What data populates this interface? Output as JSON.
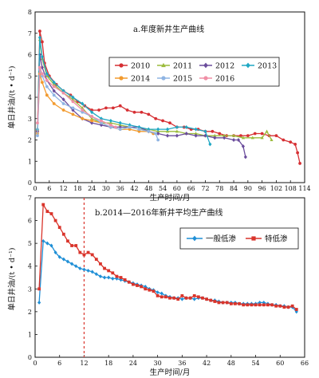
{
  "chart_data": [
    {
      "type": "line",
      "title": "a.年度新井生产曲线",
      "xlabel": "生产时间/月",
      "ylabel": "单日井油/(t • d⁻¹)",
      "xlim": [
        0,
        114
      ],
      "ylim": [
        0,
        8
      ],
      "xticks": [
        0,
        6,
        12,
        18,
        24,
        30,
        36,
        42,
        48,
        54,
        60,
        66,
        72,
        78,
        84,
        90,
        96,
        102,
        108,
        114
      ],
      "yticks": [
        0,
        1,
        2,
        3,
        4,
        5,
        6,
        7,
        8
      ],
      "legend": "top-right",
      "series": [
        {
          "name": "2010",
          "color": "#d62f33",
          "marker": "circle",
          "x": [
            1,
            2,
            3,
            4,
            6,
            9,
            12,
            15,
            18,
            21,
            24,
            27,
            30,
            33,
            36,
            39,
            42,
            45,
            48,
            51,
            54,
            57,
            60,
            63,
            66,
            69,
            72,
            75,
            78,
            81,
            84,
            87,
            90,
            93,
            96,
            99,
            102,
            105,
            108,
            110,
            111,
            112
          ],
          "y": [
            2.4,
            7.1,
            6.6,
            5.6,
            5.0,
            4.6,
            4.3,
            4.1,
            3.8,
            3.6,
            3.4,
            3.4,
            3.5,
            3.5,
            3.6,
            3.4,
            3.3,
            3.3,
            3.2,
            3.0,
            2.9,
            2.8,
            2.6,
            2.6,
            2.5,
            2.5,
            2.4,
            2.4,
            2.3,
            2.2,
            2.2,
            2.2,
            2.2,
            2.3,
            2.3,
            2.2,
            2.2,
            2.0,
            1.9,
            1.8,
            1.4,
            0.9
          ]
        },
        {
          "name": "2011",
          "color": "#9bbb3b",
          "marker": "triangle",
          "x": [
            1,
            2,
            3,
            5,
            8,
            12,
            16,
            20,
            24,
            28,
            32,
            36,
            40,
            44,
            48,
            52,
            56,
            60,
            64,
            68,
            72,
            76,
            80,
            84,
            88,
            92,
            96,
            98,
            100
          ],
          "y": [
            2.5,
            6.7,
            5.8,
            5.0,
            4.6,
            4.2,
            3.9,
            3.5,
            3.0,
            2.8,
            2.8,
            2.7,
            2.6,
            2.5,
            2.5,
            2.4,
            2.4,
            2.4,
            2.3,
            2.3,
            2.2,
            2.2,
            2.2,
            2.2,
            2.1,
            2.1,
            2.1,
            2.4,
            2.0
          ]
        },
        {
          "name": "2012",
          "color": "#6a4c9c",
          "marker": "diamond",
          "x": [
            1,
            2,
            3,
            5,
            8,
            12,
            16,
            20,
            24,
            28,
            32,
            36,
            40,
            44,
            48,
            52,
            56,
            60,
            64,
            68,
            72,
            76,
            80,
            84,
            86,
            88,
            89
          ],
          "y": [
            2.4,
            6.0,
            5.4,
            4.8,
            4.3,
            3.9,
            3.4,
            3.0,
            2.8,
            2.7,
            2.6,
            2.6,
            2.6,
            2.6,
            2.4,
            2.3,
            2.2,
            2.2,
            2.3,
            2.2,
            2.2,
            2.1,
            2.1,
            2.0,
            2.0,
            1.7,
            1.2
          ]
        },
        {
          "name": "2013",
          "color": "#1fa8c4",
          "marker": "diamond",
          "x": [
            1,
            2,
            3,
            5,
            8,
            12,
            16,
            20,
            24,
            28,
            32,
            36,
            40,
            44,
            48,
            52,
            56,
            60,
            64,
            68,
            72,
            74
          ],
          "y": [
            2.5,
            6.8,
            5.9,
            5.1,
            4.7,
            4.3,
            4.0,
            3.7,
            3.3,
            3.0,
            2.9,
            2.8,
            2.7,
            2.6,
            2.5,
            2.5,
            2.5,
            2.6,
            2.6,
            2.5,
            2.4,
            1.8
          ]
        },
        {
          "name": "2014",
          "color": "#f29a2e",
          "marker": "circle",
          "x": [
            1,
            2,
            3,
            5,
            8,
            12,
            16,
            20,
            24,
            28,
            32,
            36,
            40,
            44,
            48,
            50
          ],
          "y": [
            2.3,
            5.1,
            4.7,
            4.1,
            3.7,
            3.4,
            3.2,
            3.0,
            2.9,
            2.8,
            2.6,
            2.5,
            2.5,
            2.4,
            2.4,
            2.3
          ]
        },
        {
          "name": "2015",
          "color": "#8fb4e3",
          "marker": "circle",
          "x": [
            1,
            2,
            3,
            5,
            8,
            12,
            16,
            20,
            24,
            28,
            32,
            36,
            40,
            44,
            48,
            51,
            52
          ],
          "y": [
            2.2,
            5.3,
            5.0,
            4.5,
            4.1,
            3.7,
            3.5,
            3.3,
            3.1,
            2.8,
            2.6,
            2.5,
            2.6,
            2.5,
            2.4,
            2.3,
            2.0
          ]
        },
        {
          "name": "2016",
          "color": "#f08fa6",
          "marker": "circle",
          "x": [
            1,
            2,
            3,
            5,
            8,
            12,
            16,
            20,
            24,
            28,
            32,
            34
          ],
          "y": [
            2.8,
            5.4,
            5.1,
            4.8,
            4.5,
            4.2,
            3.8,
            3.4,
            3.1,
            2.9,
            2.7,
            2.6
          ]
        }
      ]
    },
    {
      "type": "line",
      "title": "b.2014—2016年新井平均生产曲线",
      "xlabel": "生产时间/月",
      "ylabel": "单日井油/(t • d⁻¹)",
      "xlim": [
        0,
        66
      ],
      "ylim": [
        0,
        7
      ],
      "xticks": [
        0,
        6,
        12,
        18,
        24,
        30,
        36,
        42,
        48,
        54,
        60,
        66
      ],
      "yticks": [
        0,
        1,
        2,
        3,
        4,
        5,
        6,
        7
      ],
      "vline": 12,
      "legend": "top-right",
      "series": [
        {
          "name": "一般低渗",
          "color": "#1f8fd6",
          "marker": "diamond",
          "x": [
            1,
            2,
            3,
            4,
            5,
            6,
            7,
            8,
            9,
            10,
            11,
            12,
            13,
            14,
            15,
            16,
            17,
            18,
            19,
            20,
            21,
            22,
            23,
            24,
            25,
            26,
            27,
            28,
            29,
            30,
            31,
            32,
            33,
            34,
            35,
            36,
            37,
            38,
            39,
            40,
            41,
            42,
            43,
            44,
            45,
            46,
            47,
            48,
            49,
            50,
            51,
            52,
            53,
            54,
            55,
            56,
            57,
            58,
            59,
            60,
            61,
            62,
            63,
            64
          ],
          "y": [
            2.4,
            5.1,
            5.0,
            4.9,
            4.6,
            4.4,
            4.3,
            4.2,
            4.1,
            4.0,
            3.9,
            3.85,
            3.8,
            3.75,
            3.65,
            3.55,
            3.5,
            3.5,
            3.45,
            3.45,
            3.4,
            3.35,
            3.3,
            3.25,
            3.2,
            3.15,
            3.1,
            3.0,
            2.95,
            2.85,
            2.8,
            2.7,
            2.65,
            2.6,
            2.6,
            2.55,
            2.6,
            2.6,
            2.55,
            2.6,
            2.6,
            2.55,
            2.5,
            2.5,
            2.45,
            2.4,
            2.4,
            2.4,
            2.4,
            2.35,
            2.35,
            2.35,
            2.35,
            2.35,
            2.4,
            2.4,
            2.35,
            2.3,
            2.3,
            2.25,
            2.25,
            2.2,
            2.2,
            2.0
          ]
        },
        {
          "name": "特低渗",
          "color": "#d9342b",
          "marker": "square",
          "x": [
            1,
            2,
            3,
            4,
            5,
            6,
            7,
            8,
            9,
            10,
            11,
            12,
            13,
            14,
            15,
            16,
            17,
            18,
            19,
            20,
            21,
            22,
            23,
            24,
            25,
            26,
            27,
            28,
            29,
            30,
            31,
            32,
            33,
            34,
            35,
            36,
            37,
            38,
            39,
            40,
            41,
            42,
            43,
            44,
            45,
            46,
            47,
            48,
            49,
            50,
            51,
            52,
            53,
            54,
            55,
            56,
            57,
            58,
            59,
            60,
            61,
            62,
            63,
            64
          ],
          "y": [
            3.0,
            6.7,
            6.4,
            6.3,
            6.0,
            5.7,
            5.4,
            5.1,
            4.9,
            4.9,
            4.6,
            4.5,
            4.6,
            4.5,
            4.3,
            4.1,
            3.9,
            3.8,
            3.7,
            3.55,
            3.5,
            3.4,
            3.3,
            3.2,
            3.15,
            3.1,
            3.0,
            2.95,
            2.9,
            2.7,
            2.65,
            2.65,
            2.6,
            2.6,
            2.55,
            2.7,
            2.6,
            2.6,
            2.7,
            2.65,
            2.6,
            2.55,
            2.5,
            2.45,
            2.4,
            2.4,
            2.4,
            2.35,
            2.35,
            2.35,
            2.3,
            2.3,
            2.3,
            2.3,
            2.3,
            2.3,
            2.3,
            2.3,
            2.25,
            2.25,
            2.2,
            2.2,
            2.25,
            2.1
          ]
        }
      ]
    }
  ]
}
